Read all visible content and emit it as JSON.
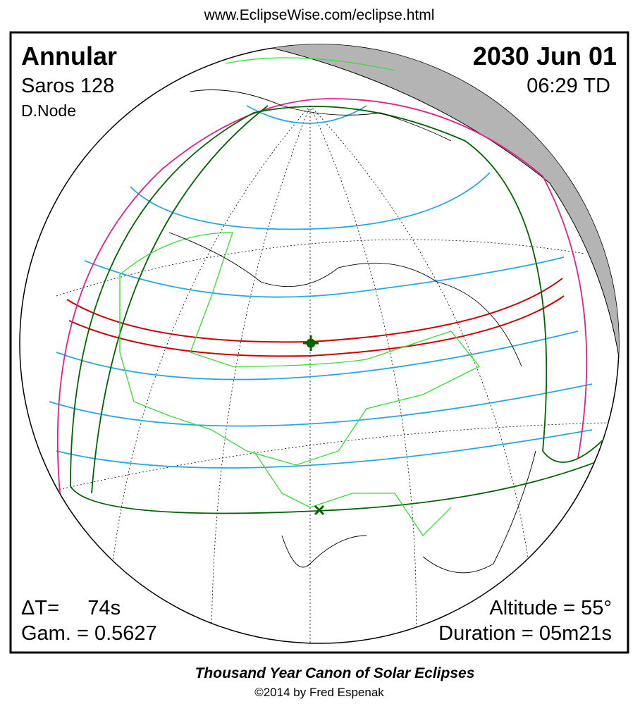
{
  "header": {
    "url": "www.EclipseWise.com/eclipse.html"
  },
  "eclipse": {
    "type": "Annular",
    "saros": "Saros 128",
    "node": "D.Node",
    "date": "2030 Jun 01",
    "time": "06:29 TD",
    "delta_t": "ΔT=     74s",
    "gamma": "Gam. = 0.5627",
    "altitude": "Altitude = 55°",
    "duration": "Duration = 05m21s"
  },
  "footer": {
    "title": "Thousand Year Canon of Solar Eclipses",
    "credit": "©2014 by Fred Espenak"
  }
}
